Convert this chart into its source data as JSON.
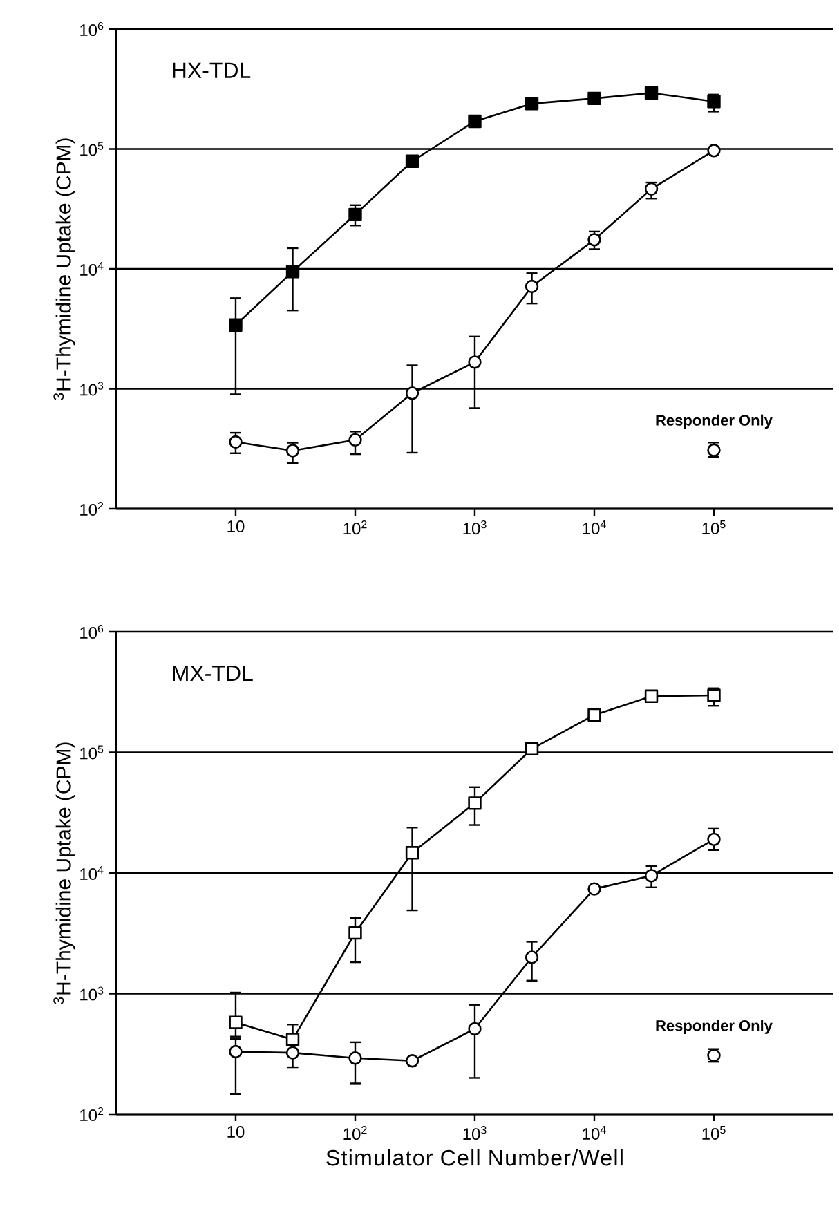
{
  "chart_data": [
    {
      "type": "line",
      "title": "HX-TDL",
      "ylabel": "$^{3}$H-Thymidine Uptake  (CPM)",
      "log": "xy",
      "grid": "y",
      "tick_labels": "xy",
      "xlim": [
        1,
        1000000
      ],
      "ylim": [
        100,
        1000000
      ],
      "xticks": [
        10,
        {
          "value": 100,
          "label": "10$^{2}$"
        },
        {
          "value": 1000,
          "label": "10$^{3}$"
        },
        {
          "value": 10000,
          "label": "10$^{4}$"
        },
        {
          "value": 100000,
          "label": "10$^{5}$"
        }
      ],
      "yticks": [
        {
          "value": 100,
          "label": "10$^{2}$"
        },
        {
          "value": 1000,
          "label": "10$^{3}$"
        },
        {
          "value": 10000,
          "label": "10$^{4}$"
        },
        {
          "value": 100000,
          "label": "10$^{5}$"
        },
        {
          "value": 1000000,
          "label": "10$^{6}$"
        }
      ],
      "series": [
        {
          "color": "#000000",
          "marker": "square",
          "x": [
            10,
            30,
            100,
            300,
            1000,
            3000,
            10000,
            30000,
            100000
          ],
          "values": [
            3400,
            9500,
            28400,
            79000,
            170000,
            239000,
            264000,
            293000,
            249000
          ],
          "errors": [
            [
              900,
              5700
            ],
            [
              4500,
              14900
            ],
            [
              23000,
              34000
            ],
            null,
            null,
            null,
            null,
            null,
            [
              205000,
              284000
            ]
          ]
        },
        {
          "color": "#ffffff",
          "marker": "circle",
          "x": [
            10,
            30,
            100,
            300,
            1000,
            3000,
            10000,
            30000,
            100000
          ],
          "values": [
            360,
            305,
            375,
            920,
            1670,
            7130,
            17500,
            46400,
            97000
          ],
          "errors": [
            [
              290,
              430
            ],
            [
              240,
              355
            ],
            [
              285,
              440
            ],
            [
              293,
              1570
            ],
            [
              690,
              2730
            ],
            [
              5140,
              9200
            ],
            [
              14600,
              20500
            ],
            [
              38600,
              52500
            ],
            null
          ]
        },
        {
          "type": "scatter",
          "name": "Responder Only",
          "color": "#ffffff",
          "marker": "circle",
          "x": [
            100000
          ],
          "values": [
            308
          ],
          "errors": [
            [
              270,
              356
            ]
          ]
        }
      ]
    },
    {
      "type": "line",
      "title": "MX-TDL",
      "ylabel": "$^{3}$H-Thymidine Uptake  (CPM)",
      "xlabel": "Stimulator  Cell  Number/Well",
      "log": "xy",
      "grid": "y",
      "xlim": [
        1,
        1000000
      ],
      "ylim": [
        100,
        1000000
      ],
      "xticks": [
        10,
        {
          "value": 100,
          "label": "10$^{2}$"
        },
        {
          "value": 1000,
          "label": "10$^{3}$"
        },
        {
          "value": 10000,
          "label": "10$^{4}$"
        },
        {
          "value": 100000,
          "label": "10$^{5}$"
        }
      ],
      "yticks": [
        {
          "value": 100,
          "label": "10$^{2}$"
        },
        {
          "value": 1000,
          "label": "10$^{3}$"
        },
        {
          "value": 10000,
          "label": "10$^{4}$"
        },
        {
          "value": 100000,
          "label": "10$^{5}$"
        },
        {
          "value": 1000000,
          "label": "10$^{6}$"
        }
      ],
      "series": [
        {
          "color": "#ffffff",
          "marker": "square",
          "x": [
            10,
            30,
            100,
            300,
            1000,
            3000,
            10000,
            30000,
            100000
          ],
          "values": [
            577,
            416,
            3190,
            14700,
            38000,
            107000,
            204000,
            292000,
            297000
          ],
          "errors": [
            [
              440,
              1020
            ],
            [
              416,
              554
            ],
            [
              1820,
              4250
            ],
            [
              4900,
              23800
            ],
            [
              25000,
              51500
            ],
            [
              96000,
              120000
            ],
            [
              184000,
              224000
            ],
            null,
            [
              243000,
              340000
            ]
          ]
        },
        {
          "color": "#ffffff",
          "marker": "circle",
          "x": [
            10,
            30,
            100,
            300,
            1000,
            3000,
            10000,
            30000,
            100000
          ],
          "values": [
            330,
            323,
            292,
            277,
            510,
            2000,
            7370,
            9500,
            19000
          ],
          "errors": [
            [
              147,
              420
            ],
            [
              245,
              395
            ],
            [
              180,
              395
            ],
            null,
            [
              200,
              807
            ],
            [
              1280,
              2690
            ],
            null,
            [
              7600,
              11400
            ],
            [
              15500,
              23300
            ]
          ]
        },
        {
          "type": "scatter",
          "name": "Responder Only",
          "color": "#ffffff",
          "marker": "circle",
          "x": [
            100000
          ],
          "values": [
            307
          ],
          "errors": [
            [
              272,
              347
            ]
          ]
        }
      ]
    }
  ]
}
